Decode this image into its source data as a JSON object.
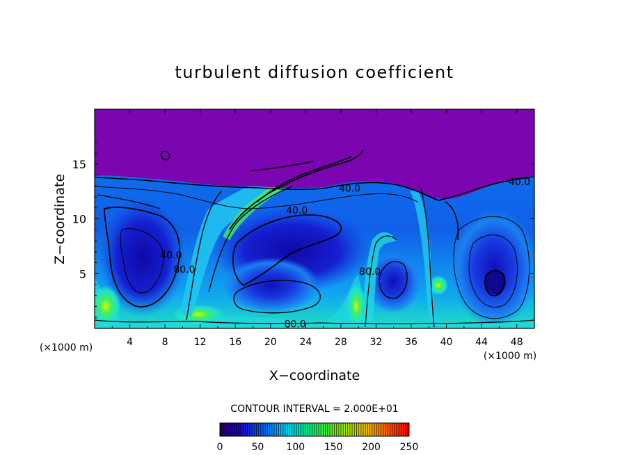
{
  "chart_data": {
    "type": "heatmap",
    "title": "turbulent diffusion coefficient",
    "xlabel": "X−coordinate",
    "ylabel": "Z−coordinate",
    "x_unit_left": "(×1000 m)",
    "x_unit_right": "(×1000 m)",
    "xlim": [
      0,
      50
    ],
    "ylim": [
      0,
      20
    ],
    "x_ticks": [
      "4",
      "8",
      "12",
      "16",
      "20",
      "24",
      "28",
      "32",
      "36",
      "40",
      "44",
      "48"
    ],
    "y_ticks": [
      "5",
      "10",
      "15"
    ],
    "contour_interval_label": "CONTOUR INTERVAL = 2.000E+01",
    "contour_labels": [
      {
        "text": "40.0",
        "x": 29,
        "y": 12.8
      },
      {
        "text": "40.0",
        "x": 23,
        "y": 10.8
      },
      {
        "text": "40.0",
        "x": 48.3,
        "y": 13.4
      },
      {
        "text": "40.0",
        "x": 8.7,
        "y": 6.7
      },
      {
        "text": "80.0",
        "x": 10.2,
        "y": 5.4
      },
      {
        "text": "80.0",
        "x": 31.3,
        "y": 5.2
      },
      {
        "text": "80.0",
        "x": 22.8,
        "y": 0.4
      }
    ],
    "colorbar": {
      "ticks": [
        "0",
        "50",
        "100",
        "150",
        "200",
        "250"
      ],
      "range": [
        0,
        250
      ],
      "colors": [
        "#2a0055",
        "#1a00c8",
        "#0a60ff",
        "#00c8ff",
        "#00e890",
        "#40f040",
        "#a0f000",
        "#f0c000",
        "#ff6000",
        "#ff0000"
      ]
    },
    "colors": {
      "background": "#7b05b0",
      "field_low": "#1515d0",
      "field_mid": "#1a80f0",
      "field_high": "#20e8e0",
      "field_peak": "#30f060"
    },
    "features": [
      {
        "name": "upper quiescent layer",
        "z_min": 13,
        "value": 5
      },
      {
        "name": "eddy",
        "center": [
          45.5,
          4
        ],
        "value": 15
      },
      {
        "name": "eddy",
        "center": [
          6,
          7
        ],
        "value": 25
      },
      {
        "name": "eddy",
        "center": [
          22,
          7
        ],
        "value": 25
      },
      {
        "name": "eddy",
        "center": [
          35,
          5
        ],
        "value": 20
      },
      {
        "name": "shear zone",
        "center": [
          20,
          11
        ],
        "value": 100
      },
      {
        "name": "bottom layer",
        "z_max": 1.5,
        "value": 90
      }
    ]
  }
}
